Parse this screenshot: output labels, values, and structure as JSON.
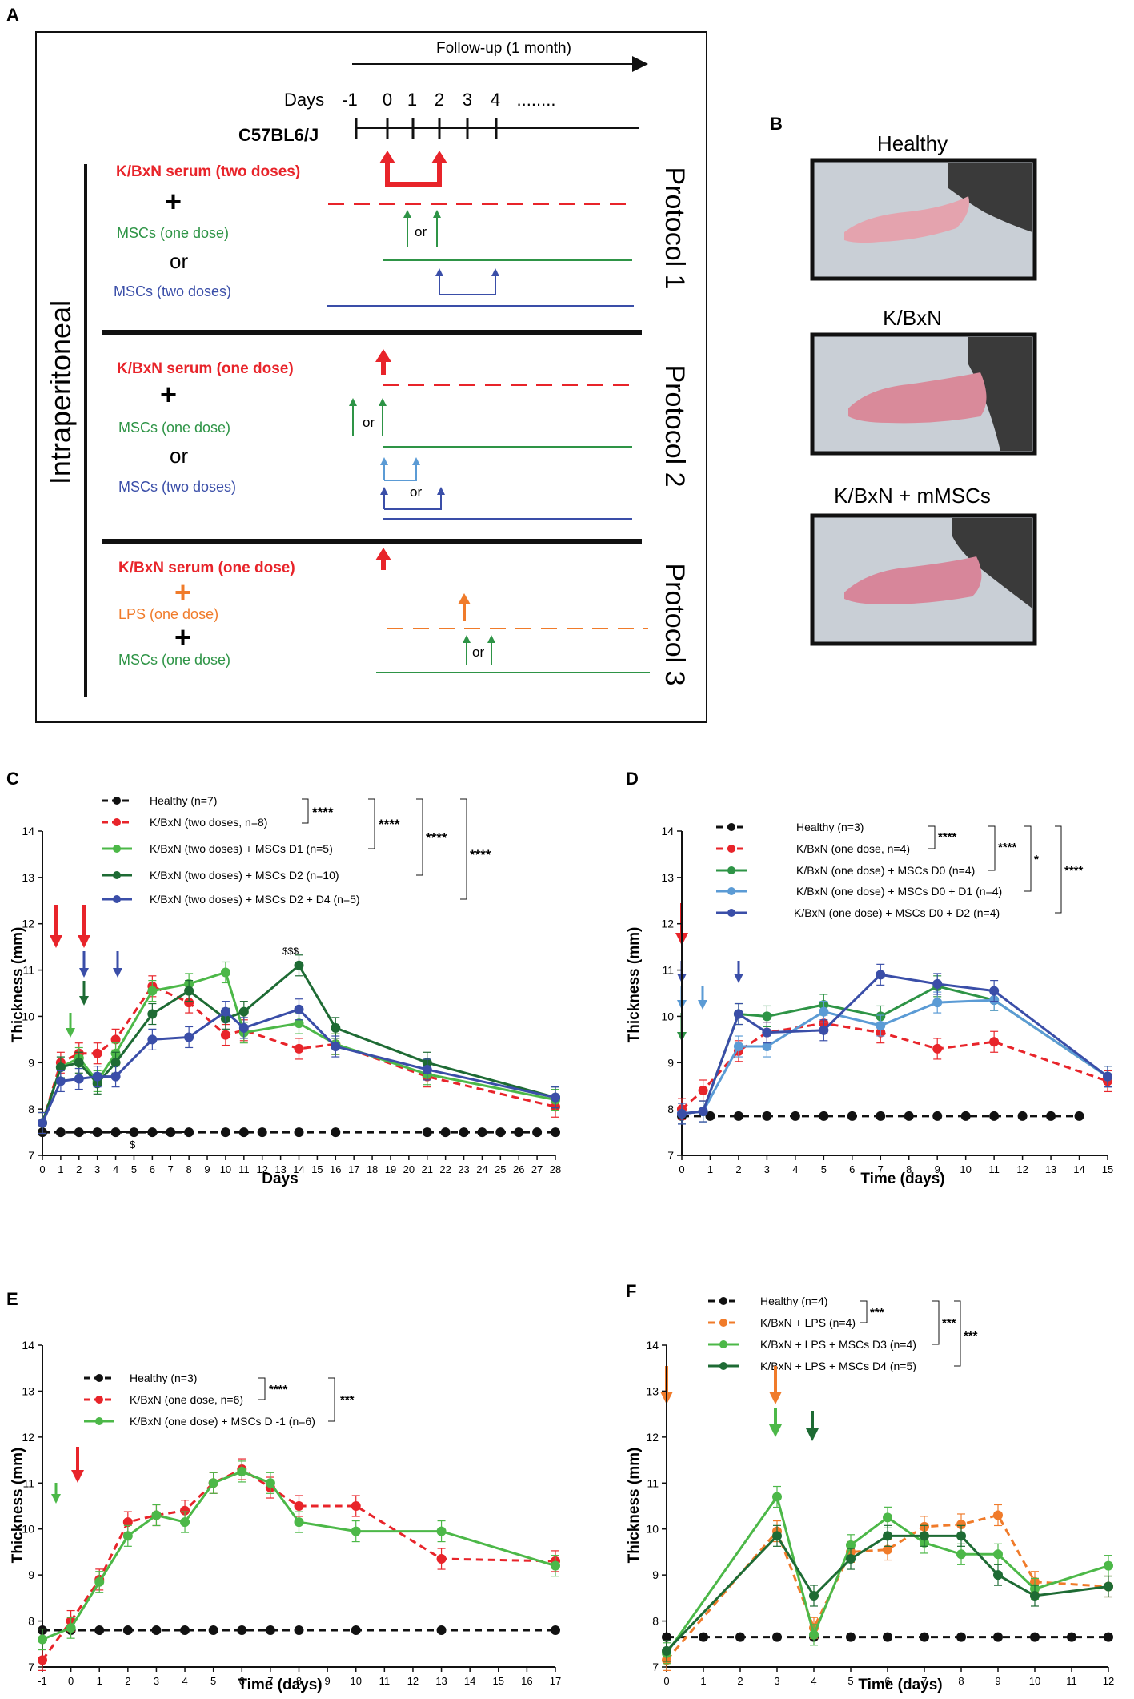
{
  "panel_a": {
    "label": "A",
    "followup": "Follow-up (1 month)",
    "days_label": "Days",
    "days": [
      "-1",
      "0",
      "1",
      "2",
      "3",
      "4",
      "........"
    ],
    "strain": "C57BL6/J",
    "route": "Intraperitoneal",
    "protocol1": {
      "title": "Protocol 1",
      "serum": "K/BxN serum (two doses)",
      "plus": "+",
      "msc_one": "MSCs (one dose)",
      "or": "or",
      "msc_two": "MSCs (two doses)",
      "arrow_or": "or"
    },
    "protocol2": {
      "title": "Protocol 2",
      "serum": "K/BxN serum (one dose)",
      "plus": "+",
      "msc_one": "MSCs (one dose)",
      "or": "or",
      "msc_two": "MSCs (two doses)",
      "arrow_or1": "or",
      "arrow_or2": "or"
    },
    "protocol3": {
      "title": "Protocol 3",
      "serum": "K/BxN serum (one dose)",
      "plus1": "+",
      "lps": "LPS (one dose)",
      "plus2": "+",
      "msc_one": "MSCs (one dose)",
      "arrow_or": "or"
    }
  },
  "panel_b": {
    "label": "B",
    "titles": [
      "Healthy",
      "K/BxN",
      "K/BxN + mMSCs"
    ]
  },
  "colors": {
    "red": "#e8242a",
    "green_light": "#4cb848",
    "green_mid": "#2e9446",
    "green_dark": "#1e6b34",
    "blue": "#3a4ea8",
    "blue_light": "#5b9bd5",
    "orange": "#f07b2a",
    "black": "#111111"
  },
  "chart_data": [
    {
      "id": "C",
      "type": "line",
      "label": "C",
      "xlabel": "Days",
      "ylabel": "Thickness (mm)",
      "xlim": [
        0,
        28
      ],
      "ylim": [
        7,
        14
      ],
      "xticks": [
        "0",
        "1",
        "2",
        "3",
        "4",
        "5",
        "6",
        "7",
        "8",
        "9",
        "10",
        "11",
        "12",
        "13",
        "14",
        "15",
        "16",
        "17",
        "18",
        "19",
        "20",
        "21",
        "22",
        "23",
        "24",
        "25",
        "26",
        "27",
        "28"
      ],
      "yticks": [
        "7",
        "8",
        "9",
        "10",
        "11",
        "12",
        "13",
        "14"
      ],
      "series": [
        {
          "name": "Healthy (n=7)",
          "color": "#111111",
          "dash": true,
          "x": [
            0,
            1,
            2,
            3,
            4,
            5,
            6,
            7,
            8,
            10,
            11,
            12,
            14,
            16,
            21,
            22,
            23,
            24,
            25,
            26,
            27,
            28
          ],
          "y": [
            7.5,
            7.5,
            7.5,
            7.5,
            7.5,
            7.5,
            7.5,
            7.5,
            7.5,
            7.5,
            7.5,
            7.5,
            7.5,
            7.5,
            7.5,
            7.5,
            7.5,
            7.5,
            7.5,
            7.5,
            7.5,
            7.5
          ]
        },
        {
          "name": "K/BxN (two doses, n=8)",
          "color": "#e8242a",
          "dash": true,
          "x": [
            0,
            1,
            2,
            3,
            4,
            6,
            8,
            10,
            11,
            14,
            16,
            21,
            28
          ],
          "y": [
            7.7,
            9.0,
            9.2,
            9.2,
            9.5,
            10.65,
            10.3,
            9.6,
            9.7,
            9.3,
            9.4,
            8.7,
            8.05
          ]
        },
        {
          "name": "K/BxN (two doses) + MSCs D1 (n=5)",
          "color": "#4cb848",
          "dash": false,
          "x": [
            0,
            1,
            2,
            3,
            4,
            6,
            8,
            10,
            11,
            14,
            16,
            21,
            28
          ],
          "y": [
            7.7,
            8.9,
            9.1,
            8.6,
            9.2,
            10.55,
            10.7,
            10.95,
            9.65,
            9.85,
            9.4,
            8.75,
            8.2
          ]
        },
        {
          "name": "K/BxN (two doses) + MSCs D2 (n=10)",
          "color": "#1e6b34",
          "dash": false,
          "x": [
            0,
            1,
            2,
            3,
            4,
            6,
            8,
            10,
            11,
            14,
            16,
            21,
            28
          ],
          "y": [
            7.7,
            8.9,
            9.0,
            8.55,
            9.0,
            10.05,
            10.55,
            9.95,
            10.1,
            11.1,
            9.75,
            9.0,
            8.25
          ]
        },
        {
          "name": "K/BxN (two doses) + MSCs D2 + D4 (n=5)",
          "color": "#3a4ea8",
          "dash": false,
          "x": [
            0,
            1,
            2,
            3,
            4,
            6,
            8,
            10,
            11,
            14,
            16,
            21,
            28
          ],
          "y": [
            7.7,
            8.6,
            8.65,
            8.7,
            8.7,
            9.5,
            9.55,
            10.1,
            9.75,
            10.15,
            9.35,
            8.85,
            8.25
          ]
        }
      ],
      "sig": [
        "****",
        "****",
        "****",
        "****"
      ],
      "annotations": [
        "$$$",
        "$"
      ]
    },
    {
      "id": "D",
      "type": "line",
      "label": "D",
      "xlabel": "Time (days)",
      "ylabel": "Thickness (mm)",
      "xlim": [
        0,
        15
      ],
      "ylim": [
        7,
        14
      ],
      "xticks": [
        "0",
        "1",
        "2",
        "3",
        "4",
        "5",
        "6",
        "7",
        "8",
        "9",
        "10",
        "11",
        "12",
        "13",
        "14",
        "15"
      ],
      "yticks": [
        "7",
        "8",
        "9",
        "10",
        "11",
        "12",
        "13",
        "14"
      ],
      "series": [
        {
          "name": "Healthy (n=3)",
          "color": "#111111",
          "dash": true,
          "x": [
            0,
            1,
            2,
            3,
            4,
            5,
            6,
            7,
            8,
            9,
            10,
            11,
            12,
            13,
            14
          ],
          "y": [
            7.85,
            7.85,
            7.85,
            7.85,
            7.85,
            7.85,
            7.85,
            7.85,
            7.85,
            7.85,
            7.85,
            7.85,
            7.85,
            7.85,
            7.85
          ]
        },
        {
          "name": "K/BxN (one dose, n=4)",
          "color": "#e8242a",
          "dash": true,
          "x": [
            0,
            0.75,
            2,
            3,
            5,
            7,
            9,
            11,
            15
          ],
          "y": [
            8.0,
            8.4,
            9.25,
            9.65,
            9.85,
            9.65,
            9.3,
            9.45,
            8.6
          ]
        },
        {
          "name": "K/BxN (one dose) + MSCs D0 (n=4)",
          "color": "#2e9446",
          "dash": false,
          "x": [
            0,
            0.75,
            2,
            3,
            5,
            7,
            9,
            11,
            15
          ],
          "y": [
            7.9,
            7.95,
            10.05,
            10.0,
            10.25,
            10.0,
            10.65,
            10.35,
            8.7
          ]
        },
        {
          "name": "K/BxN (one dose) + MSCs D0 + D1 (n=4)",
          "color": "#5b9bd5",
          "dash": false,
          "x": [
            0,
            0.75,
            2,
            3,
            5,
            7,
            9,
            11,
            15
          ],
          "y": [
            7.9,
            7.95,
            9.35,
            9.35,
            10.1,
            9.8,
            10.3,
            10.35,
            8.7
          ]
        },
        {
          "name": "K/BxN  (one dose) + MSCs D0 + D2 (n=4)",
          "color": "#3a4ea8",
          "dash": false,
          "x": [
            0,
            0.75,
            2,
            3,
            5,
            7,
            9,
            11,
            15
          ],
          "y": [
            7.9,
            7.95,
            10.05,
            9.65,
            9.7,
            10.9,
            10.7,
            10.55,
            8.7
          ]
        }
      ],
      "sig": [
        "****",
        "****",
        "*",
        "****"
      ]
    },
    {
      "id": "E",
      "type": "line",
      "label": "E",
      "xlabel": "Time (days)",
      "ylabel": "Thickness (mm)",
      "xlim": [
        -1,
        17
      ],
      "ylim": [
        7,
        14
      ],
      "xticks": [
        "-1",
        "0",
        "1",
        "2",
        "3",
        "4",
        "5",
        "6",
        "7",
        "8",
        "9",
        "10",
        "11",
        "12",
        "13",
        "14",
        "15",
        "16",
        "17"
      ],
      "yticks": [
        "7",
        "8",
        "9",
        "10",
        "11",
        "12",
        "13",
        "14"
      ],
      "series": [
        {
          "name": "Healthy (n=3)",
          "color": "#111111",
          "dash": true,
          "x": [
            -1,
            0,
            1,
            2,
            3,
            4,
            5,
            6,
            7,
            8,
            10,
            13,
            17
          ],
          "y": [
            7.8,
            7.8,
            7.8,
            7.8,
            7.8,
            7.8,
            7.8,
            7.8,
            7.8,
            7.8,
            7.8,
            7.8,
            7.8
          ]
        },
        {
          "name": "K/BxN (one dose, n=6)",
          "color": "#e8242a",
          "dash": true,
          "x": [
            -1,
            0,
            1,
            2,
            3,
            4,
            5,
            6,
            7,
            8,
            10,
            13,
            17
          ],
          "y": [
            7.15,
            8.0,
            8.9,
            10.15,
            10.3,
            10.4,
            11.0,
            11.3,
            10.9,
            10.5,
            10.5,
            9.35,
            9.3
          ]
        },
        {
          "name": "K/BxN (one dose) + MSCs D -1 (n=6)",
          "color": "#4cb848",
          "dash": false,
          "x": [
            -1,
            0,
            1,
            2,
            3,
            4,
            5,
            6,
            7,
            8,
            10,
            13,
            17
          ],
          "y": [
            7.6,
            7.85,
            8.85,
            9.85,
            10.3,
            10.15,
            11.0,
            11.25,
            11.0,
            10.15,
            9.95,
            9.95,
            9.2
          ]
        }
      ],
      "sig": [
        "****",
        "***"
      ]
    },
    {
      "id": "F",
      "type": "line",
      "label": "F",
      "xlabel": "Time (days)",
      "ylabel": "Thickness (mm)",
      "xlim": [
        0,
        12
      ],
      "ylim": [
        7,
        14
      ],
      "xticks": [
        "0",
        "1",
        "2",
        "3",
        "4",
        "5",
        "6",
        "7",
        "8",
        "9",
        "10",
        "11",
        "12"
      ],
      "yticks": [
        "7",
        "8",
        "9",
        "10",
        "11",
        "12",
        "13",
        "14"
      ],
      "series": [
        {
          "name": "Healthy (n=4)",
          "color": "#111111",
          "dash": true,
          "x": [
            0,
            1,
            2,
            3,
            4,
            5,
            6,
            7,
            8,
            9,
            10,
            11,
            12
          ],
          "y": [
            7.65,
            7.65,
            7.65,
            7.65,
            7.65,
            7.65,
            7.65,
            7.65,
            7.65,
            7.65,
            7.65,
            7.65,
            7.65
          ]
        },
        {
          "name": "K/BxN + LPS (n=4)",
          "color": "#f07b2a",
          "dash": true,
          "x": [
            0,
            3,
            4,
            5,
            6,
            7,
            8,
            9,
            10,
            12
          ],
          "y": [
            7.15,
            9.95,
            7.85,
            9.5,
            9.55,
            10.05,
            10.1,
            10.3,
            8.85,
            8.75
          ]
        },
        {
          "name": "K/BxN + LPS + MSCs D3 (n=4)",
          "color": "#4cb848",
          "dash": false,
          "x": [
            0,
            3,
            4,
            5,
            6,
            7,
            8,
            9,
            10,
            12
          ],
          "y": [
            7.3,
            10.7,
            7.7,
            9.65,
            10.25,
            9.7,
            9.45,
            9.45,
            8.7,
            9.2
          ]
        },
        {
          "name": "K/BxN + LPS + MSCs D4 (n=5)",
          "color": "#1e6b34",
          "dash": false,
          "x": [
            0,
            3,
            4,
            5,
            6,
            7,
            8,
            9,
            10,
            12
          ],
          "y": [
            7.35,
            9.85,
            8.55,
            9.35,
            9.85,
            9.85,
            9.85,
            9.0,
            8.55,
            8.75
          ]
        }
      ],
      "sig": [
        "***",
        "***",
        "***"
      ]
    }
  ]
}
